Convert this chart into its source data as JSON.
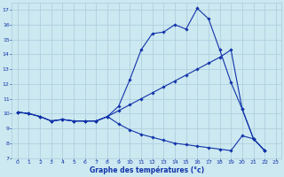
{
  "xlabel": "Graphe des températures (°c)",
  "background_color": "#cce8f0",
  "grid_color": "#aaccdd",
  "line_color": "#1133aa",
  "xlim": [
    -0.5,
    23.5
  ],
  "ylim": [
    7,
    17.5
  ],
  "yticks": [
    7,
    8,
    9,
    10,
    11,
    12,
    13,
    14,
    15,
    16,
    17
  ],
  "xticks": [
    0,
    1,
    2,
    3,
    4,
    5,
    6,
    7,
    8,
    9,
    10,
    11,
    12,
    13,
    14,
    15,
    16,
    17,
    18,
    19,
    20,
    21,
    22,
    23
  ],
  "series": [
    {
      "x": [
        0,
        1,
        2,
        3,
        4,
        5,
        6,
        7,
        8,
        9,
        10,
        11,
        12,
        13,
        14,
        15,
        16,
        17,
        18,
        19,
        20,
        21,
        22
      ],
      "y": [
        10.1,
        10.0,
        9.8,
        9.5,
        9.6,
        9.5,
        9.5,
        9.5,
        9.8,
        10.5,
        12.3,
        14.3,
        15.4,
        15.5,
        16.0,
        15.7,
        17.1,
        16.4,
        14.3,
        12.1,
        10.3,
        8.3,
        7.5
      ]
    },
    {
      "x": [
        0,
        1,
        2,
        3,
        4,
        5,
        6,
        7,
        8,
        9,
        10,
        11,
        12,
        13,
        14,
        15,
        16,
        17,
        18,
        19,
        20,
        21,
        22
      ],
      "y": [
        10.1,
        10.0,
        9.8,
        9.5,
        9.6,
        9.5,
        9.5,
        9.5,
        9.8,
        10.2,
        10.6,
        11.0,
        11.4,
        11.8,
        12.2,
        12.6,
        13.0,
        13.4,
        13.8,
        14.3,
        10.3,
        8.3,
        7.5
      ]
    },
    {
      "x": [
        0,
        1,
        2,
        3,
        4,
        5,
        6,
        7,
        8,
        9,
        10,
        11,
        12,
        13,
        14,
        15,
        16,
        17,
        18,
        19,
        20,
        21,
        22
      ],
      "y": [
        10.1,
        10.0,
        9.8,
        9.5,
        9.6,
        9.5,
        9.5,
        9.5,
        9.8,
        9.3,
        8.9,
        8.6,
        8.4,
        8.2,
        8.0,
        7.9,
        7.8,
        7.7,
        7.6,
        7.5,
        8.5,
        8.3,
        7.5
      ]
    }
  ],
  "font_color": "#1133aa",
  "marker": "D",
  "markersize": 1.8,
  "linewidth": 0.8,
  "tick_fontsize": 4.5,
  "xlabel_fontsize": 5.5
}
